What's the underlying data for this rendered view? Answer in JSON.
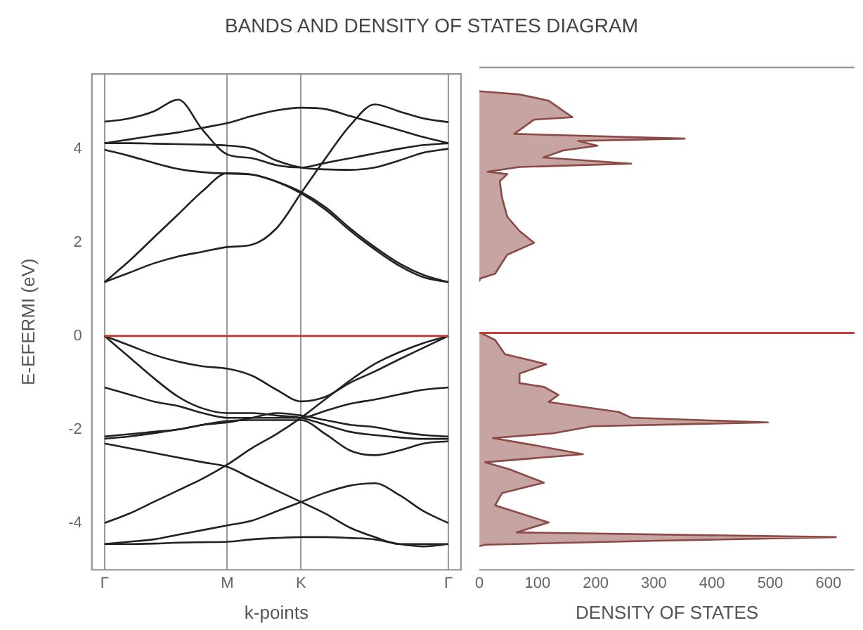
{
  "chart_data": [
    {
      "type": "line",
      "title": "BANDS AND DENSITY OF STATES DIAGRAM",
      "xlabel": "k-points",
      "ylabel": "E-EFERMI (eV)",
      "categories": [
        "Γ",
        null,
        null,
        null,
        null,
        "M",
        null,
        null,
        "K",
        null,
        null,
        null,
        null,
        null,
        "Γ"
      ],
      "ylim": [
        -5,
        5.6
      ],
      "yticks": [
        -4,
        -2,
        0,
        2,
        4
      ],
      "grid": "x",
      "ref_lines": [
        {
          "axis": "y",
          "value": 0,
          "color": "#c83c3c"
        }
      ],
      "series": [
        {
          "color": "#222222",
          "values": [
            1.15,
            1.35,
            1.55,
            1.7,
            1.8,
            1.9,
            1.95,
            2.3,
            3.05,
            3.8,
            4.5,
            4.95,
            4.8,
            4.65,
            4.57
          ]
        },
        {
          "color": "#222222",
          "values": [
            1.15,
            1.6,
            2.1,
            2.6,
            3.1,
            3.48,
            3.45,
            3.3,
            3.08,
            2.75,
            2.3,
            1.9,
            1.55,
            1.3,
            1.15
          ]
        },
        {
          "color": "#222222",
          "values": [
            3.98,
            3.85,
            3.7,
            3.57,
            3.5,
            3.47,
            3.45,
            3.3,
            3.05,
            2.7,
            2.25,
            1.85,
            1.5,
            1.25,
            1.15
          ]
        },
        {
          "color": "#222222",
          "values": [
            4.58,
            4.65,
            4.8,
            5.05,
            4.4,
            3.88,
            3.8,
            3.65,
            3.6,
            3.7,
            3.8,
            3.9,
            4.0,
            4.08,
            4.12
          ]
        },
        {
          "color": "#222222",
          "values": [
            4.12,
            4.12,
            4.11,
            4.1,
            4.09,
            4.07,
            4.0,
            3.75,
            3.6,
            3.56,
            3.55,
            3.6,
            3.75,
            3.92,
            4.0
          ]
        },
        {
          "color": "#222222",
          "values": [
            4.12,
            4.2,
            4.28,
            4.35,
            4.45,
            4.55,
            4.7,
            4.82,
            4.88,
            4.85,
            4.7,
            4.55,
            4.4,
            4.25,
            4.12
          ]
        },
        {
          "color": "#222222",
          "values": [
            0,
            -0.2,
            -0.4,
            -0.55,
            -0.65,
            -0.7,
            -0.85,
            -1.15,
            -1.4,
            -1.3,
            -1.0,
            -0.76,
            -0.5,
            -0.25,
            0
          ]
        },
        {
          "color": "#222222",
          "values": [
            0,
            -0.45,
            -0.9,
            -1.3,
            -1.55,
            -1.65,
            -1.65,
            -1.7,
            -1.75,
            -1.9,
            -2.05,
            -2.12,
            -2.17,
            -2.2,
            -2.2
          ]
        },
        {
          "color": "#222222",
          "values": [
            -1.1,
            -1.25,
            -1.4,
            -1.5,
            -1.65,
            -1.75,
            -1.75,
            -1.75,
            -1.75,
            -1.6,
            -1.45,
            -1.36,
            -1.25,
            -1.15,
            -1.1
          ]
        },
        {
          "color": "#222222",
          "values": [
            -2.15,
            -2.1,
            -2.05,
            -2.0,
            -1.9,
            -1.85,
            -1.75,
            -1.65,
            -1.7,
            -1.8,
            -1.9,
            -1.95,
            -2.05,
            -2.12,
            -2.15
          ]
        },
        {
          "color": "#222222",
          "values": [
            -2.2,
            -2.15,
            -2.08,
            -2.0,
            -1.9,
            -1.82,
            -1.8,
            -1.8,
            -1.8,
            -2.1,
            -2.45,
            -2.55,
            -2.45,
            -2.3,
            -2.25
          ]
        },
        {
          "color": "#222222",
          "values": [
            -2.3,
            -2.4,
            -2.5,
            -2.6,
            -2.7,
            -2.8,
            -3.05,
            -3.3,
            -3.55,
            -3.8,
            -4.1,
            -4.3,
            -4.45,
            -4.45,
            -4.45
          ]
        },
        {
          "color": "#222222",
          "values": [
            -4.0,
            -3.8,
            -3.55,
            -3.3,
            -3.05,
            -2.75,
            -2.4,
            -2.1,
            -1.75,
            -1.35,
            -0.95,
            -0.6,
            -0.35,
            -0.15,
            0
          ]
        },
        {
          "color": "#222222",
          "values": [
            -4.45,
            -4.4,
            -4.35,
            -4.25,
            -4.15,
            -4.05,
            -3.95,
            -3.75,
            -3.55,
            -3.35,
            -3.2,
            -3.15,
            -3.4,
            -3.75,
            -4.0
          ]
        },
        {
          "color": "#222222",
          "values": [
            -4.45,
            -4.45,
            -4.44,
            -4.42,
            -4.41,
            -4.4,
            -4.35,
            -4.32,
            -4.3,
            -4.3,
            -4.32,
            -4.35,
            -4.45,
            -4.5,
            -4.45
          ]
        }
      ]
    },
    {
      "type": "area",
      "orientation": "horizontal",
      "xlabel": "DENSITY OF STATES",
      "xlim": [
        0,
        645
      ],
      "xticks": [
        0,
        100,
        200,
        300,
        400,
        500,
        600
      ],
      "ylim": [
        -5,
        5.6
      ],
      "tick_labels": "x",
      "ref_lines": [
        {
          "axis": "y",
          "value": 0,
          "color": "#c83c3c"
        }
      ],
      "series": [
        {
          "color": "#8c4a46",
          "x": [
            5.1,
            5.03,
            4.9,
            4.55,
            4.5,
            4.2,
            4.1,
            4.05,
            3.95,
            3.85,
            3.7,
            3.57,
            3.5,
            3.4,
            3.35,
            3.2,
            2.85,
            2.45,
            2.15,
            1.9,
            1.65,
            1.25,
            1.15,
            1.1,
            0.5,
            0,
            -0.15,
            -0.45,
            -0.66,
            -0.86,
            -1.06,
            -1.14,
            -1.31,
            -1.46,
            -1.67,
            -1.79,
            -1.89,
            -1.97,
            -2.12,
            -2.22,
            -2.37,
            -2.56,
            -2.73,
            -2.88,
            -3.16,
            -3.38,
            -3.64,
            -4.0,
            -4.21,
            -4.31,
            -4.39,
            -4.47,
            -4.5
          ],
          "values": [
            0,
            70,
            119,
            160,
            94,
            60,
            353,
            170,
            203,
            144,
            110,
            261,
            69,
            14,
            48,
            35,
            39,
            48,
            69,
            94,
            48,
            27,
            2,
            0,
            null,
            2,
            27,
            44,
            115,
            69,
            69,
            111,
            136,
            119,
            240,
            261,
            496,
            194,
            127,
            23,
            94,
            178,
            10,
            52,
            111,
            39,
            27,
            119,
            64,
            613,
            295,
            10,
            0
          ]
        }
      ]
    }
  ]
}
